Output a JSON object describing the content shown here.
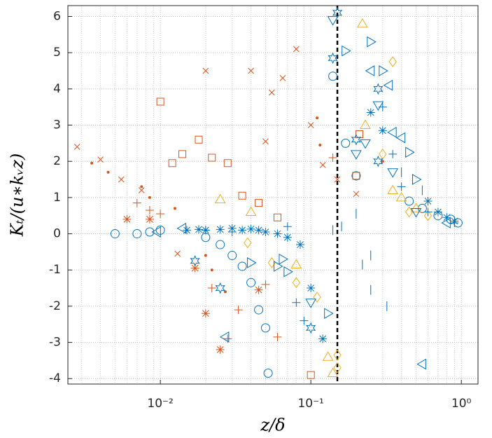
{
  "chart_data": {
    "type": "scatter",
    "xlabel": "z/δ",
    "ylabel": "Kₜ/(u∗kᵥz)",
    "xscale": "log",
    "xlim": [
      0.00243,
      1.29
    ],
    "ylim": [
      -4.15,
      6.3
    ],
    "xticks": [
      {
        "value": 0.01,
        "label": "10⁻²"
      },
      {
        "value": 0.1,
        "label": "10⁻¹"
      },
      {
        "value": 1,
        "label": "10⁰"
      }
    ],
    "yticks": [
      -4,
      -3,
      -2,
      -1,
      0,
      1,
      2,
      3,
      4,
      5,
      6
    ],
    "grid": true,
    "minor_grid": true,
    "vline": 0.15,
    "series": [
      {
        "marker": "o",
        "color": "#0072bd",
        "x": [
          0.005,
          0.007,
          0.0085,
          0.01,
          0.02,
          0.025,
          0.03,
          0.035,
          0.04,
          0.045,
          0.05,
          0.052,
          0.14,
          0.17,
          0.2,
          0.45,
          0.55,
          0.7,
          0.85,
          0.95
        ],
        "values": [
          0,
          0,
          0.05,
          0.1,
          -0.1,
          -0.3,
          -0.6,
          -0.9,
          -1.35,
          -2.1,
          -2.6,
          -3.85,
          4.35,
          2.5,
          1.6,
          0.9,
          0.7,
          0.5,
          0.4,
          0.3
        ]
      },
      {
        "marker": "x",
        "color": "#d95319",
        "x": [
          0.0028,
          0.004,
          0.0055,
          0.0075,
          0.013,
          0.02,
          0.04,
          0.05,
          0.055,
          0.065,
          0.08,
          0.1,
          0.12,
          0.15,
          0.2
        ],
        "values": [
          2.4,
          2.05,
          1.5,
          1.2,
          -0.55,
          4.5,
          4.5,
          2.55,
          3.9,
          4.3,
          5.1,
          3,
          1.9,
          1.5,
          1.1
        ]
      },
      {
        "marker": "s",
        "color": "#d95319",
        "x": [
          0.01,
          0.012,
          0.014,
          0.018,
          0.022,
          0.028,
          0.035,
          0.045,
          0.06,
          0.1,
          0.2,
          0.21
        ],
        "values": [
          3.65,
          1.95,
          2.2,
          2.6,
          2.1,
          1.95,
          1.05,
          0.85,
          0.45,
          -3.9,
          1.6,
          2.75
        ]
      },
      {
        "marker": ".",
        "color": "#d95319",
        "x": [
          0.0035,
          0.0045,
          0.0075,
          0.0085,
          0.0125,
          0.02,
          0.022,
          0.027,
          0.11,
          0.115,
          0.3
        ],
        "values": [
          1.95,
          1.7,
          1.3,
          1,
          0.7,
          -0.6,
          -1,
          -1.6,
          3.2,
          2.45,
          2
        ]
      },
      {
        "marker": "+",
        "color": "#d95319",
        "x": [
          0.007,
          0.0085,
          0.01,
          0.022,
          0.028,
          0.033,
          0.05,
          0.06,
          0.14
        ],
        "values": [
          0.85,
          0.65,
          0.55,
          -1.5,
          -2.9,
          -2.1,
          -1.4,
          -2.85,
          2.1
        ]
      },
      {
        "marker": "*",
        "color": "#d95319",
        "x": [
          0.006,
          0.0085,
          0.017,
          0.02,
          0.025,
          0.045
        ],
        "values": [
          0.4,
          0.4,
          -0.95,
          -2.2,
          -3.2,
          -1.55
        ]
      },
      {
        "marker": "^",
        "color": "#edb120",
        "x": [
          0.025,
          0.04,
          0.08,
          0.13,
          0.14,
          0.22,
          0.23,
          0.35,
          0.4,
          0.5
        ],
        "values": [
          0.95,
          0.6,
          -0.85,
          -3.4,
          -3.85,
          5.8,
          3,
          1.2,
          1,
          0.7
        ]
      },
      {
        "marker": "d",
        "color": "#edb120",
        "x": [
          0.038,
          0.055,
          0.08,
          0.11,
          0.15,
          0.15,
          0.35,
          0.3,
          0.45,
          0.6
        ],
        "values": [
          -0.25,
          -0.8,
          -1.35,
          -1.75,
          -3.35,
          -3.7,
          4.75,
          2.2,
          0.6,
          0.5
        ]
      },
      {
        "marker": ">",
        "color": "#0072bd",
        "x": [
          0.04,
          0.06,
          0.065,
          0.07,
          0.13,
          0.17,
          0.25,
          0.3,
          0.45,
          0.5
        ],
        "values": [
          -0.8,
          -0.9,
          -0.7,
          -1.05,
          -2.2,
          5.05,
          5.3,
          4.5,
          2.25,
          1.5
        ]
      },
      {
        "marker": "v",
        "color": "#0072bd",
        "x": [
          0.1,
          0.14,
          0.2,
          0.23,
          0.28,
          0.35,
          0.5
        ],
        "values": [
          -1.9,
          5.9,
          2.2,
          2.5,
          3.55,
          1.7,
          0.6
        ]
      },
      {
        "marker": "<",
        "color": "#0072bd",
        "x": [
          0.0095,
          0.014,
          0.027,
          0.25,
          0.33,
          0.35,
          0.4,
          0.55,
          0.8
        ],
        "values": [
          0.05,
          0.15,
          -2.85,
          4.5,
          4.1,
          2.8,
          2.65,
          -3.6,
          0.3
        ]
      },
      {
        "marker": "|",
        "color": "#0072bd",
        "x": [
          0.14,
          0.16,
          0.2,
          0.25,
          0.22,
          0.25,
          0.32,
          0.4,
          0.55
        ],
        "values": [
          0.1,
          0.2,
          0.55,
          -0.6,
          -0.85,
          -1.55,
          -2,
          1.7,
          1.2
        ]
      },
      {
        "marker": "h",
        "color": "#0072bd",
        "x": [
          0.017,
          0.025,
          0.1,
          0.15,
          0.14,
          0.28,
          0.2,
          0.28
        ],
        "values": [
          -0.75,
          -1.5,
          -2.6,
          6.1,
          4.85,
          4,
          2.6,
          2
        ]
      },
      {
        "marker": "*",
        "color": "#0072bd",
        "x": [
          0.015,
          0.018,
          0.02,
          0.025,
          0.03,
          0.035,
          0.04,
          0.045,
          0.05,
          0.06,
          0.07,
          0.085,
          0.1,
          0.12,
          0.25,
          0.3,
          0.6,
          0.7,
          0.8,
          0.9
        ],
        "values": [
          0.1,
          0.12,
          0.1,
          0.12,
          0.15,
          0.1,
          0.13,
          0.1,
          0.05,
          0,
          -0.1,
          -0.3,
          -1.5,
          -2.9,
          3.35,
          2.85,
          0.9,
          0.6,
          0.45,
          0.35
        ]
      },
      {
        "marker": "+",
        "color": "#0072bd",
        "x": [
          0.02,
          0.03,
          0.07,
          0.09,
          0.08,
          0.3,
          0.35,
          0.4,
          0.6,
          0.9
        ],
        "values": [
          0.1,
          0.05,
          0.2,
          -2.4,
          -1.9,
          3.5,
          2.2,
          1.3,
          0.6,
          0.3
        ]
      }
    ]
  }
}
